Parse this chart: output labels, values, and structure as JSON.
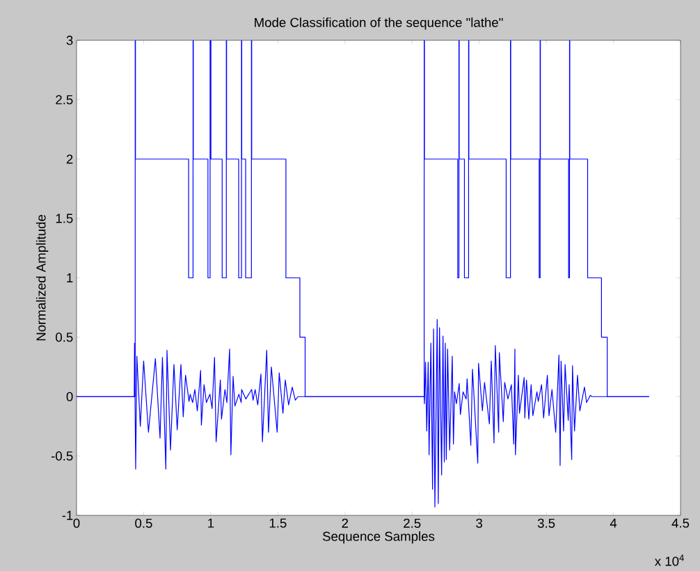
{
  "chart_data": {
    "type": "line",
    "title": "Mode Classification of the sequence \"lathe\"",
    "xlabel": "Sequence Samples",
    "ylabel": "Normalized Amplitude",
    "annotations": [
      "x 10$^{4}$"
    ],
    "xlim": [
      0,
      4.5
    ],
    "ylim": [
      -1,
      3
    ],
    "xticks": [
      0,
      0.5,
      1,
      1.5,
      2,
      2.5,
      3,
      3.5,
      4,
      4.5
    ],
    "yticks": [
      -1,
      -0.5,
      0,
      0.5,
      1,
      1.5,
      2,
      2.5,
      3
    ],
    "grid": false,
    "series": [
      {
        "color": "#0000ff",
        "x": [
          0,
          0.43,
          0.432,
          0.4406,
          0.4493,
          0.4752,
          0.5,
          0.5357,
          0.5875,
          0.6221,
          0.64,
          0.6653,
          0.6739,
          0.7,
          0.7258,
          0.75,
          0.7776,
          0.7949,
          0.8122,
          0.8381,
          0.8467,
          0.865,
          0.8813,
          0.9,
          0.9245,
          0.93,
          0.95,
          0.9677,
          0.9936,
          1.01,
          1.0282,
          1.04,
          1.0714,
          1.08,
          1.1059,
          1.12,
          1.1405,
          1.15,
          1.1664,
          1.18,
          1.2096,
          1.2269,
          1.23,
          1.2614,
          1.3046,
          1.315,
          1.3306,
          1.35,
          1.3738,
          1.385,
          1.417,
          1.43,
          1.4515,
          1.4947,
          1.51,
          1.5379,
          1.5552,
          1.58,
          1.607,
          1.63,
          1.6502,
          1.703,
          2.59,
          2.5921,
          2.6,
          2.6092,
          2.62,
          2.6265,
          2.64,
          2.6525,
          2.66,
          2.6698,
          2.687,
          2.695,
          2.7044,
          2.72,
          2.7303,
          2.74,
          2.7475,
          2.755,
          2.7648,
          2.78,
          2.7994,
          2.808,
          2.8166,
          2.83,
          2.8512,
          2.86,
          2.88,
          2.903,
          2.91,
          2.9376,
          2.95,
          2.9894,
          2.995,
          3.024,
          3.04,
          3.0758,
          3.09,
          3.1104,
          3.12,
          3.145,
          3.15,
          3.1795,
          3.19,
          3.2141,
          3.24,
          3.2573,
          3.2659,
          3.27,
          3.2918,
          3.3,
          3.335,
          3.34,
          3.3523,
          3.37,
          3.3869,
          3.4,
          3.4301,
          3.44,
          3.4646,
          3.48,
          3.5078,
          3.52,
          3.5424,
          3.57,
          3.5942,
          3.6029,
          3.61,
          3.6288,
          3.64,
          3.6634,
          3.67,
          3.6893,
          3.695,
          3.71,
          3.7325,
          3.75,
          3.7843,
          3.8,
          3.8275,
          3.84,
          4.266
        ],
        "values": [
          0,
          0,
          0.45,
          -0.61,
          0.34,
          -0.25,
          0.3,
          -0.3,
          0.32,
          -0.35,
          0.33,
          -0.61,
          0.39,
          -0.45,
          0.27,
          -0.28,
          0.27,
          -0.17,
          0.18,
          -0.04,
          0.02,
          -0.05,
          0.06,
          -0.12,
          0.22,
          -0.24,
          0.1,
          -0.05,
          0.02,
          -0.1,
          0.33,
          -0.38,
          0.14,
          -0.19,
          0.06,
          -0.05,
          0.4,
          -0.49,
          0.17,
          -0.08,
          0.02,
          -0.05,
          0.06,
          -0.02,
          0.06,
          -0.03,
          0.06,
          -0.07,
          0.19,
          -0.38,
          0.39,
          -0.3,
          0.25,
          -0.3,
          0.2,
          -0.14,
          0.14,
          -0.07,
          0.08,
          -0.03,
          0,
          0,
          0,
          -0.06,
          0.29,
          -0.29,
          0.29,
          -0.49,
          0.45,
          -0.78,
          0.57,
          -0.93,
          0.65,
          -0.9,
          0.58,
          -0.66,
          0.51,
          -0.55,
          0.45,
          -0.53,
          0.4,
          -0.45,
          0.34,
          -0.4,
          0.04,
          -0.06,
          0.11,
          -0.15,
          0.04,
          -0.02,
          0.15,
          -0.41,
          0.23,
          -0.56,
          0.28,
          -0.12,
          0.12,
          -0.23,
          0.3,
          -0.39,
          0.43,
          -0.3,
          0.37,
          -0.21,
          0.12,
          -0.02,
          0.1,
          -0.4,
          0.4,
          -0.49,
          0.18,
          -0.14,
          0.16,
          -0.18,
          0.14,
          -0.19,
          0.1,
          -0.16,
          0.04,
          -0.04,
          0.1,
          -0.18,
          0.18,
          -0.16,
          0.06,
          -0.3,
          0.35,
          -0.58,
          0.3,
          -0.29,
          0.27,
          -0.2,
          0.1,
          -0.53,
          0.26,
          -0.29,
          0.18,
          -0.12,
          0.08,
          -0.05,
          0.01,
          0,
          0
        ]
      },
      {
        "type": "step",
        "color": "#0000ff",
        "x": [
          0,
          0.437,
          0.439,
          0.835,
          0.868,
          0.87,
          0.979,
          0.995,
          1.001,
          1.085,
          1.116,
          1.118,
          1.208,
          1.229,
          1.231,
          1.26,
          1.303,
          1.305,
          1.56,
          1.664,
          1.703,
          2.59,
          2.592,
          2.84,
          2.849,
          2.851,
          2.89,
          2.921,
          2.923,
          3.201,
          3.233,
          3.235,
          3.447,
          3.454,
          3.456,
          3.666,
          3.673,
          3.675,
          3.808,
          3.911,
          3.954,
          4.266
        ],
        "values": [
          0,
          3,
          2,
          1,
          3,
          2,
          1,
          3,
          2,
          1,
          3,
          2,
          1,
          3,
          2,
          1,
          3,
          2,
          1,
          0.5,
          0,
          3,
          2,
          1,
          3,
          2,
          1,
          3,
          2,
          1,
          3,
          2,
          1,
          3,
          2,
          1,
          3,
          2,
          1,
          0.5,
          0,
          0
        ]
      }
    ]
  }
}
